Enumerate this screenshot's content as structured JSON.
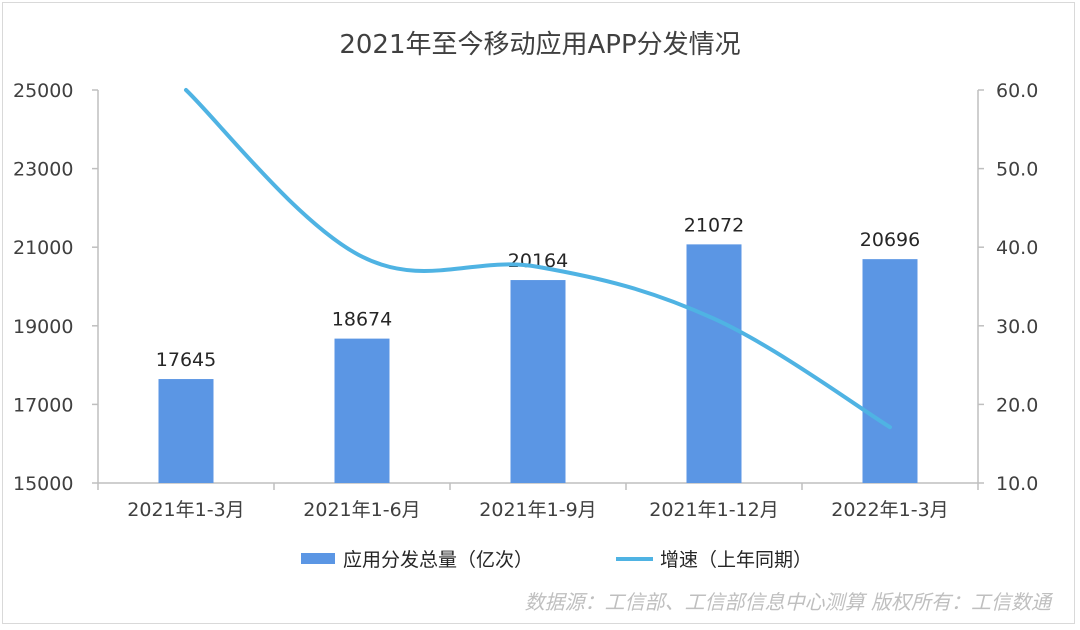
{
  "chart_data": {
    "type": "bar",
    "title": "2021年至今移动应用APP分发情况",
    "categories": [
      "2021年1-3月",
      "2021年1-6月",
      "2021年1-9月",
      "2021年1-12月",
      "2022年1-3月"
    ],
    "series": [
      {
        "name": "应用分发总量（亿次）",
        "type": "bar",
        "axis": "left",
        "color": "#5b96e4",
        "values": [
          17645,
          18674,
          20164,
          21072,
          20696
        ]
      },
      {
        "name": "增速（上年同期）",
        "type": "line",
        "axis": "right",
        "color": "#4fb3e3",
        "values": [
          60.0,
          38.8,
          37.5,
          30.9,
          17.1
        ]
      }
    ],
    "y_left": {
      "ylim": [
        15000,
        25000
      ],
      "ticks": [
        "15000",
        "17000",
        "19000",
        "21000",
        "23000",
        "25000"
      ]
    },
    "y_right": {
      "ylim": [
        10.0,
        60.0
      ],
      "ticks": [
        "10.0",
        "20.0",
        "30.0",
        "40.0",
        "50.0",
        "60.0"
      ]
    },
    "data_labels": [
      "17645",
      "18674",
      "20164",
      "21072",
      "20696"
    ],
    "legend_position": "bottom",
    "grid": false
  },
  "source_note": "数据源：工信部、工信部信息中心测算   版权所有：工信数通"
}
